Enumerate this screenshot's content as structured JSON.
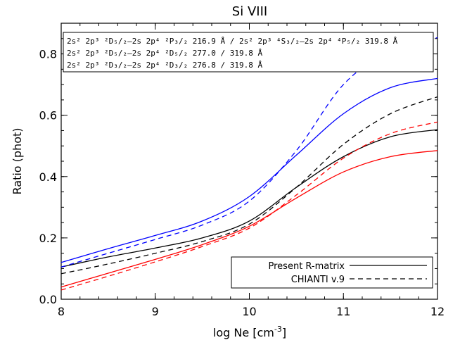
{
  "chart_data": {
    "type": "line",
    "title": "Si VIII",
    "xlabel": "log Ne [cm",
    "xlabel_sup": "-3",
    "xlabel_end": "]",
    "ylabel": "Ratio (phot)",
    "xlim": [
      8,
      12
    ],
    "ylim": [
      0,
      0.9
    ],
    "xticks": [
      8,
      9,
      10,
      11,
      12
    ],
    "yticks": [
      0.0,
      0.2,
      0.4,
      0.6,
      0.8
    ],
    "xtick_labels": [
      "8",
      "9",
      "10",
      "11",
      "12"
    ],
    "ytick_labels": [
      "0.0",
      "0.2",
      "0.4",
      "0.6",
      "0.8"
    ],
    "grid": false,
    "ratio_legend": [
      {
        "color": "#000000",
        "text": "2s² 2p³ ²D₅/₂–2s 2p⁴ ²P₃/₂ 216.9 Å / 2s² 2p³ ⁴S₃/₂–2s 2p⁴ ⁴P₅/₂ 319.8 Å"
      },
      {
        "color": "#0000ff",
        "text": "2s² 2p³ ²D₅/₂–2s 2p⁴ ²D₅/₂ 277.0 / 319.8 Å"
      },
      {
        "color": "#ff0000",
        "text": "2s² 2p³ ²D₃/₂–2s 2p⁴ ²D₃/₂ 276.8 / 319.8 Å"
      }
    ],
    "style_legend": [
      {
        "label": "Present R-matrix",
        "dash": "solid"
      },
      {
        "label": "CHIANTI v.9",
        "dash": "dashed"
      }
    ],
    "series": [
      {
        "color": "#000000",
        "dash": "solid",
        "x": [
          8.0,
          8.5,
          9.0,
          9.5,
          10.0,
          10.5,
          11.0,
          11.5,
          12.0
        ],
        "y": [
          0.105,
          0.138,
          0.167,
          0.2,
          0.255,
          0.365,
          0.465,
          0.53,
          0.553
        ]
      },
      {
        "color": "#000000",
        "dash": "dashed",
        "x": [
          8.0,
          8.5,
          9.0,
          9.5,
          10.0,
          10.5,
          11.0,
          11.5,
          12.0
        ],
        "y": [
          0.083,
          0.115,
          0.15,
          0.188,
          0.245,
          0.365,
          0.505,
          0.605,
          0.66
        ]
      },
      {
        "color": "#0000ff",
        "dash": "solid",
        "x": [
          8.0,
          8.5,
          9.0,
          9.5,
          10.0,
          10.5,
          11.0,
          11.5,
          12.0
        ],
        "y": [
          0.12,
          0.165,
          0.208,
          0.255,
          0.335,
          0.47,
          0.605,
          0.69,
          0.72
        ]
      },
      {
        "color": "#0000ff",
        "dash": "dashed",
        "x": [
          8.0,
          8.5,
          9.0,
          9.5,
          10.0,
          10.5,
          11.0,
          11.5,
          12.0
        ],
        "y": [
          0.105,
          0.15,
          0.195,
          0.242,
          0.32,
          0.485,
          0.7,
          0.81,
          0.853
        ]
      },
      {
        "color": "#ff0000",
        "dash": "solid",
        "x": [
          8.0,
          8.5,
          9.0,
          9.5,
          10.0,
          10.5,
          11.0,
          11.5,
          12.0
        ],
        "y": [
          0.04,
          0.085,
          0.13,
          0.178,
          0.238,
          0.33,
          0.415,
          0.465,
          0.485
        ]
      },
      {
        "color": "#ff0000",
        "dash": "dashed",
        "x": [
          8.0,
          8.5,
          9.0,
          9.5,
          10.0,
          10.5,
          11.0,
          11.5,
          12.0
        ],
        "y": [
          0.03,
          0.075,
          0.122,
          0.172,
          0.232,
          0.34,
          0.46,
          0.54,
          0.578
        ]
      }
    ]
  }
}
